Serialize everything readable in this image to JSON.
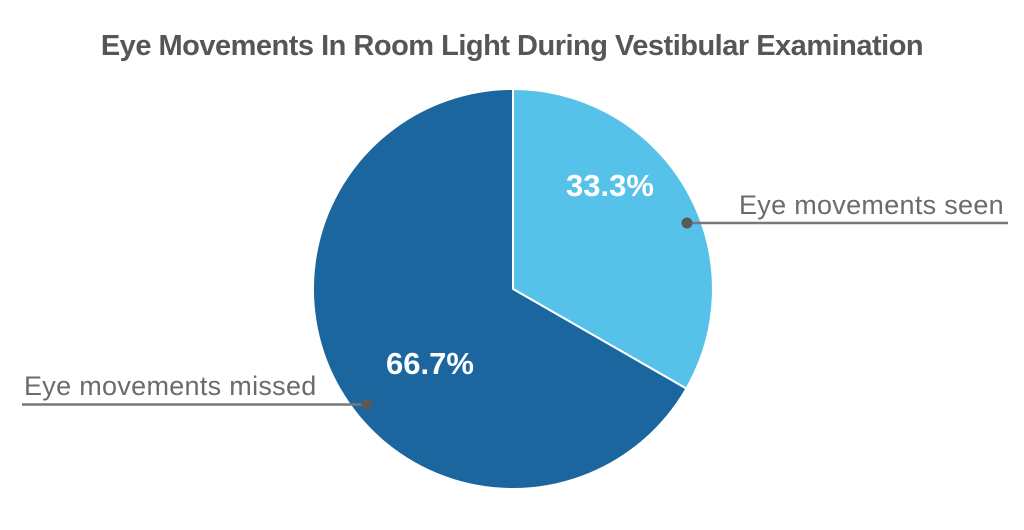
{
  "title": "Eye Movements In Room Light During Vestibular Examination",
  "chart_data": {
    "type": "pie",
    "title": "Eye Movements In Room Light During Vestibular Examination",
    "categories": [
      "Eye movements seen",
      "Eye movements missed"
    ],
    "values": [
      33.3,
      66.7
    ],
    "slice_labels": [
      "33.3%",
      "66.7%"
    ],
    "colors": [
      "#56C2E9",
      "#1C66A0"
    ],
    "start_angle_deg": 0,
    "direction": "clockwise",
    "legend_position": "callout-labels",
    "background": "#FFFFFF"
  },
  "colors": {
    "title_text": "#55565A",
    "label_text": "#6A6B6E",
    "leader_line": "#77787B",
    "dot": "#58595B",
    "background": "#FFFFFF"
  }
}
